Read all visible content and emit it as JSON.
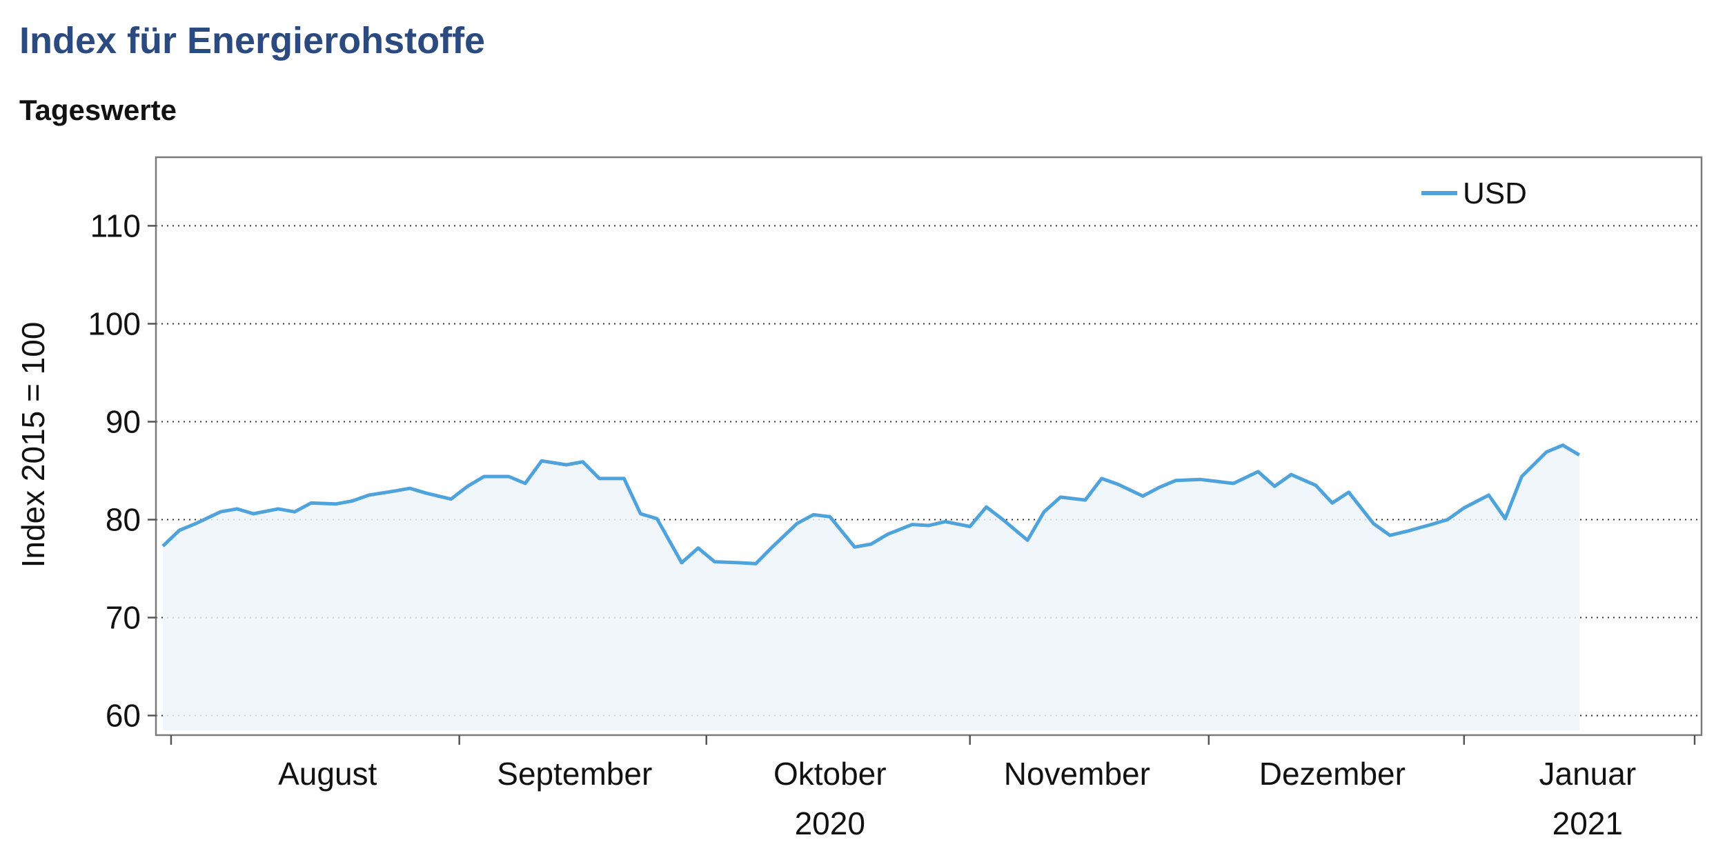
{
  "title": "Index für Energierohstoffe",
  "subtitle": "Tageswerte",
  "chart_data": {
    "type": "line",
    "ylabel": "Index 2015 = 100",
    "ylim": [
      58,
      117
    ],
    "yticks": [
      60,
      70,
      80,
      90,
      100,
      110
    ],
    "grid": "horizontal dotted",
    "legend": "top-right",
    "x_start": "2020-07-27",
    "x_end": "2021-01-29",
    "month_labels": [
      {
        "label": "August",
        "year": "",
        "date": "2020-08-16"
      },
      {
        "label": "September",
        "year": "",
        "date": "2020-09-15"
      },
      {
        "label": "Oktober",
        "year": "2020",
        "date": "2020-10-16"
      },
      {
        "label": "November",
        "year": "",
        "date": "2020-11-15"
      },
      {
        "label": "Dezember",
        "year": "",
        "date": "2020-12-16"
      },
      {
        "label": "Januar",
        "year": "2021",
        "date": "2021-01-16"
      }
    ],
    "month_ticks": [
      "2020-07-28",
      "2020-09-01",
      "2020-10-01",
      "2020-11-02",
      "2020-12-01",
      "2021-01-01",
      "2021-01-29"
    ],
    "series": [
      {
        "name": "USD",
        "color": "#4fa3dc",
        "points": [
          [
            "2020-07-27",
            77.3
          ],
          [
            "2020-07-29",
            78.9
          ],
          [
            "2020-07-31",
            79.6
          ],
          [
            "2020-08-03",
            80.8
          ],
          [
            "2020-08-05",
            81.1
          ],
          [
            "2020-08-07",
            80.6
          ],
          [
            "2020-08-10",
            81.1
          ],
          [
            "2020-08-12",
            80.8
          ],
          [
            "2020-08-14",
            81.7
          ],
          [
            "2020-08-17",
            81.6
          ],
          [
            "2020-08-19",
            81.9
          ],
          [
            "2020-08-21",
            82.5
          ],
          [
            "2020-08-24",
            82.9
          ],
          [
            "2020-08-26",
            83.2
          ],
          [
            "2020-08-28",
            82.7
          ],
          [
            "2020-08-31",
            82.1
          ],
          [
            "2020-09-02",
            83.4
          ],
          [
            "2020-09-04",
            84.4
          ],
          [
            "2020-09-07",
            84.4
          ],
          [
            "2020-09-09",
            83.7
          ],
          [
            "2020-09-11",
            86.0
          ],
          [
            "2020-09-14",
            85.6
          ],
          [
            "2020-09-16",
            85.9
          ],
          [
            "2020-09-18",
            84.2
          ],
          [
            "2020-09-21",
            84.2
          ],
          [
            "2020-09-23",
            80.6
          ],
          [
            "2020-09-25",
            80.1
          ],
          [
            "2020-09-28",
            75.6
          ],
          [
            "2020-09-30",
            77.1
          ],
          [
            "2020-10-02",
            75.7
          ],
          [
            "2020-10-05",
            75.6
          ],
          [
            "2020-10-07",
            75.5
          ],
          [
            "2020-10-09",
            77.2
          ],
          [
            "2020-10-12",
            79.6
          ],
          [
            "2020-10-14",
            80.5
          ],
          [
            "2020-10-16",
            80.3
          ],
          [
            "2020-10-19",
            77.2
          ],
          [
            "2020-10-21",
            77.5
          ],
          [
            "2020-10-23",
            78.5
          ],
          [
            "2020-10-26",
            79.5
          ],
          [
            "2020-10-28",
            79.4
          ],
          [
            "2020-10-30",
            79.8
          ],
          [
            "2020-11-02",
            79.3
          ],
          [
            "2020-11-04",
            81.3
          ],
          [
            "2020-11-06",
            80.0
          ],
          [
            "2020-11-09",
            77.9
          ],
          [
            "2020-11-11",
            80.8
          ],
          [
            "2020-11-13",
            82.3
          ],
          [
            "2020-11-16",
            82.0
          ],
          [
            "2020-11-18",
            84.2
          ],
          [
            "2020-11-20",
            83.6
          ],
          [
            "2020-11-23",
            82.4
          ],
          [
            "2020-11-25",
            83.3
          ],
          [
            "2020-11-27",
            84.0
          ],
          [
            "2020-11-30",
            84.1
          ],
          [
            "2020-12-02",
            83.9
          ],
          [
            "2020-12-04",
            83.7
          ],
          [
            "2020-12-07",
            84.9
          ],
          [
            "2020-12-09",
            83.4
          ],
          [
            "2020-12-11",
            84.6
          ],
          [
            "2020-12-14",
            83.5
          ],
          [
            "2020-12-16",
            81.7
          ],
          [
            "2020-12-18",
            82.8
          ],
          [
            "2020-12-21",
            79.6
          ],
          [
            "2020-12-23",
            78.4
          ],
          [
            "2020-12-25",
            78.8
          ],
          [
            "2020-12-28",
            79.5
          ],
          [
            "2020-12-30",
            80.0
          ],
          [
            "2021-01-01",
            81.2
          ],
          [
            "2021-01-04",
            82.5
          ],
          [
            "2021-01-06",
            80.1
          ],
          [
            "2021-01-08",
            84.4
          ],
          [
            "2021-01-11",
            86.9
          ],
          [
            "2021-01-13",
            87.6
          ],
          [
            "2021-01-15",
            86.6
          ]
        ]
      }
    ]
  }
}
